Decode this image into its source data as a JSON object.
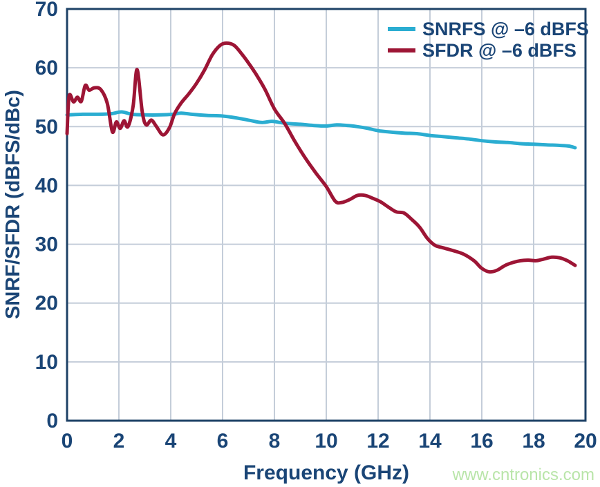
{
  "chart_data": {
    "type": "line",
    "title": "",
    "xlabel": "Frequency (GHz)",
    "ylabel": "SNRF/SFDR (dBFS/dBc)",
    "xlim": [
      0,
      20
    ],
    "ylim": [
      0,
      70
    ],
    "xticks": [
      0,
      2,
      4,
      6,
      8,
      10,
      12,
      14,
      16,
      18,
      20
    ],
    "yticks": [
      0,
      10,
      20,
      30,
      40,
      50,
      60,
      70
    ],
    "grid": true,
    "legend_position": "top-right-inside",
    "series": [
      {
        "name": "SNRFS @ –6 dBFS",
        "color": "#2badd1",
        "points": [
          [
            0,
            52.0
          ],
          [
            0.6,
            52.1
          ],
          [
            1.2,
            52.1
          ],
          [
            1.7,
            52.2
          ],
          [
            2.1,
            52.5
          ],
          [
            2.5,
            52.1
          ],
          [
            3,
            52.0
          ],
          [
            3.6,
            52.0
          ],
          [
            4.1,
            52.1
          ],
          [
            4.4,
            52.3
          ],
          [
            4.8,
            52.1
          ],
          [
            5.4,
            51.9
          ],
          [
            6,
            51.8
          ],
          [
            6.5,
            51.5
          ],
          [
            7,
            51.1
          ],
          [
            7.5,
            50.7
          ],
          [
            7.9,
            50.9
          ],
          [
            8.2,
            50.7
          ],
          [
            8.6,
            50.5
          ],
          [
            9,
            50.4
          ],
          [
            9.5,
            50.2
          ],
          [
            10,
            50.1
          ],
          [
            10.4,
            50.3
          ],
          [
            10.8,
            50.2
          ],
          [
            11.2,
            50.0
          ],
          [
            11.6,
            49.7
          ],
          [
            12,
            49.3
          ],
          [
            12.4,
            49.1
          ],
          [
            13,
            48.9
          ],
          [
            13.5,
            48.8
          ],
          [
            14,
            48.5
          ],
          [
            14.5,
            48.3
          ],
          [
            15,
            48.1
          ],
          [
            15.5,
            47.9
          ],
          [
            16,
            47.6
          ],
          [
            16.5,
            47.4
          ],
          [
            17,
            47.3
          ],
          [
            17.5,
            47.1
          ],
          [
            18,
            47.0
          ],
          [
            18.5,
            46.9
          ],
          [
            19,
            46.8
          ],
          [
            19.35,
            46.7
          ],
          [
            19.6,
            46.4
          ]
        ]
      },
      {
        "name": "SFDR @ –6 dBFS",
        "color": "#9d1535",
        "points": [
          [
            0,
            48.8
          ],
          [
            0.08,
            55.2
          ],
          [
            0.25,
            54.2
          ],
          [
            0.4,
            55.0
          ],
          [
            0.55,
            54.3
          ],
          [
            0.7,
            57.0
          ],
          [
            0.85,
            56.2
          ],
          [
            1.05,
            56.6
          ],
          [
            1.3,
            56.3
          ],
          [
            1.55,
            54.0
          ],
          [
            1.75,
            49.1
          ],
          [
            1.9,
            50.8
          ],
          [
            2.05,
            49.7
          ],
          [
            2.2,
            51.0
          ],
          [
            2.35,
            50.0
          ],
          [
            2.55,
            53.5
          ],
          [
            2.7,
            59.7
          ],
          [
            2.9,
            52.5
          ],
          [
            3.05,
            50.3
          ],
          [
            3.25,
            51.1
          ],
          [
            3.45,
            50.0
          ],
          [
            3.7,
            48.6
          ],
          [
            3.95,
            49.8
          ],
          [
            4.15,
            52.2
          ],
          [
            4.4,
            54.0
          ],
          [
            4.7,
            55.6
          ],
          [
            5.0,
            57.4
          ],
          [
            5.3,
            59.6
          ],
          [
            5.6,
            62.2
          ],
          [
            5.9,
            63.8
          ],
          [
            6.15,
            64.2
          ],
          [
            6.45,
            63.8
          ],
          [
            6.75,
            62.3
          ],
          [
            7.05,
            60.5
          ],
          [
            7.35,
            58.5
          ],
          [
            7.65,
            56.2
          ],
          [
            8.0,
            53.0
          ],
          [
            8.4,
            50.5
          ],
          [
            8.8,
            47.4
          ],
          [
            9.2,
            44.6
          ],
          [
            9.6,
            42.1
          ],
          [
            10.0,
            39.8
          ],
          [
            10.35,
            37.3
          ],
          [
            10.6,
            37.1
          ],
          [
            10.9,
            37.6
          ],
          [
            11.2,
            38.3
          ],
          [
            11.5,
            38.3
          ],
          [
            11.8,
            37.8
          ],
          [
            12.1,
            37.2
          ],
          [
            12.4,
            36.3
          ],
          [
            12.7,
            35.5
          ],
          [
            13.0,
            35.3
          ],
          [
            13.3,
            34.2
          ],
          [
            13.6,
            32.9
          ],
          [
            13.9,
            31.0
          ],
          [
            14.2,
            29.8
          ],
          [
            14.5,
            29.4
          ],
          [
            14.9,
            28.9
          ],
          [
            15.3,
            28.3
          ],
          [
            15.7,
            27.2
          ],
          [
            16.0,
            25.9
          ],
          [
            16.3,
            25.3
          ],
          [
            16.6,
            25.6
          ],
          [
            16.9,
            26.4
          ],
          [
            17.2,
            26.9
          ],
          [
            17.5,
            27.2
          ],
          [
            17.8,
            27.3
          ],
          [
            18.1,
            27.2
          ],
          [
            18.4,
            27.5
          ],
          [
            18.7,
            27.8
          ],
          [
            19.0,
            27.7
          ],
          [
            19.3,
            27.2
          ],
          [
            19.6,
            26.4
          ]
        ]
      }
    ]
  },
  "watermark": {
    "text": "www.cntronics.com",
    "color": "#b9e5a9"
  },
  "colors": {
    "axis_text": "#1a4576",
    "plot_border": "#1d4166",
    "gridline": "#c4cdd9",
    "background": "#ffffff"
  }
}
